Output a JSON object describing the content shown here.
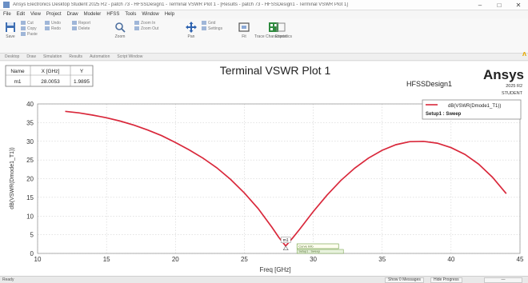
{
  "window": {
    "title": "Ansys Electronics Desktop Student 2025 R2 - patch 73 - HFSSDesign1 - Terminal VSWR Plot 1 - [Results - patch 73 - HFSSDesign1 - Terminal VSWR Plot 1]",
    "controls": [
      "–",
      "□",
      "✕"
    ]
  },
  "menu": [
    "File",
    "Edit",
    "View",
    "Project",
    "Draw",
    "Modeler",
    "HFSS",
    "Tools",
    "Window",
    "Help"
  ],
  "ribbon": {
    "buttons": [
      "Save",
      "Zoom",
      "Pan",
      "Fit",
      "Trace Characteristics",
      "Export"
    ],
    "small_items": [
      "Cut",
      "Copy",
      "Paste",
      "Undo",
      "Redo",
      "Report",
      "Delete",
      "Zoom In",
      "Zoom Out",
      "Grid",
      "Settings"
    ]
  },
  "tabs": [
    "Desktop",
    "Draw",
    "Simulation",
    "Results",
    "Automation",
    "Script Window"
  ],
  "plot": {
    "title": "Terminal VSWR Plot 1",
    "design_name": "HFSSDesign1",
    "logo": "Ansys",
    "version": "2025 R2",
    "edition": "STUDENT",
    "marker_table": {
      "headers": [
        "Name",
        "X [GHz]",
        "Y"
      ],
      "rows": [
        [
          "m1",
          "28.0053",
          "1.9895"
        ]
      ]
    },
    "marker_label": "m1",
    "legend": {
      "trace": "dB(VSWR(Dmode1_T1))",
      "setup": "Setup1 : Sweep"
    }
  },
  "chart_data": {
    "type": "line",
    "title": "Terminal VSWR Plot 1",
    "xlabel": "Freq [GHz]",
    "ylabel": "dB(VSWR(Dmode1_T1))",
    "xlim": [
      10,
      45
    ],
    "ylim": [
      0,
      40
    ],
    "xticks": [
      10,
      15,
      20,
      25,
      30,
      35,
      40,
      45
    ],
    "yticks": [
      0,
      5,
      10,
      15,
      20,
      25,
      30,
      35,
      40
    ],
    "grid": true,
    "legend_position": "top-right",
    "series": [
      {
        "name": "dB(VSWR(Dmode1_T1))",
        "color": "#d9283b",
        "x": [
          12,
          13,
          14,
          15,
          16,
          17,
          18,
          19,
          20,
          21,
          22,
          23,
          24,
          25,
          26,
          27,
          27.5,
          28.0,
          28.5,
          29,
          30,
          31,
          32,
          33,
          34,
          35,
          36,
          37,
          38,
          39,
          40,
          41,
          42,
          43,
          44
        ],
        "y": [
          38.0,
          37.6,
          37.0,
          36.3,
          35.4,
          34.3,
          33.0,
          31.5,
          29.7,
          27.7,
          25.5,
          22.9,
          19.8,
          16.2,
          12.0,
          7.0,
          4.3,
          2.0,
          4.1,
          6.4,
          11.2,
          15.6,
          19.5,
          22.8,
          25.5,
          27.6,
          29.1,
          29.9,
          30.0,
          29.5,
          28.3,
          26.5,
          23.9,
          20.4,
          16.0
        ]
      }
    ],
    "markers": [
      {
        "name": "m1",
        "x": 28.0053,
        "y": 1.9895
      }
    ],
    "annotations": [
      "Curve Info",
      "Setup1 : Sweep"
    ]
  },
  "status": {
    "ready": "Ready",
    "buttons": [
      "Show 0 Messages",
      "Hide Progress",
      "—"
    ]
  }
}
